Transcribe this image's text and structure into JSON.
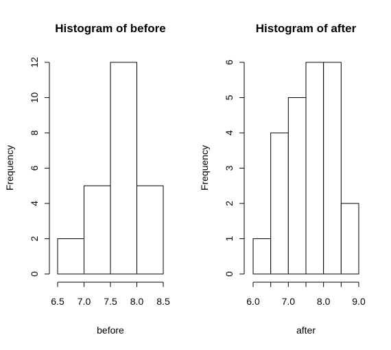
{
  "chart_data": [
    {
      "type": "bar",
      "title": "Histogram of before",
      "xlabel": "before",
      "ylabel": "Frequency",
      "bins": [
        [
          6.5,
          7.0
        ],
        [
          7.0,
          7.5
        ],
        [
          7.5,
          8.0
        ],
        [
          8.0,
          8.5
        ]
      ],
      "values": [
        2,
        5,
        12,
        5
      ],
      "xlim": [
        6.5,
        8.5
      ],
      "ylim": [
        0,
        12
      ],
      "xticks": [
        6.5,
        7.0,
        7.5,
        8.0,
        8.5
      ],
      "xtick_labels": [
        "6.5",
        "7.0",
        "7.5",
        "8.0",
        "8.5"
      ],
      "yticks": [
        0,
        2,
        4,
        6,
        8,
        10,
        12
      ],
      "ytick_labels": [
        "0",
        "2",
        "4",
        "6",
        "8",
        "10",
        "12"
      ],
      "grid": false
    },
    {
      "type": "bar",
      "title": "Histogram of after",
      "xlabel": "after",
      "ylabel": "Frequency",
      "bins": [
        [
          6.0,
          6.5
        ],
        [
          6.5,
          7.0
        ],
        [
          7.0,
          7.5
        ],
        [
          7.5,
          8.0
        ],
        [
          8.0,
          8.5
        ],
        [
          8.5,
          9.0
        ]
      ],
      "values": [
        1,
        4,
        5,
        6,
        6,
        2
      ],
      "xlim": [
        6.0,
        9.0
      ],
      "ylim": [
        0,
        6
      ],
      "xticks": [
        6.0,
        6.5,
        7.0,
        7.5,
        8.0,
        8.5,
        9.0
      ],
      "xtick_labels": [
        "6.0",
        "",
        "7.0",
        "",
        "8.0",
        "",
        "9.0"
      ],
      "yticks": [
        0,
        1,
        2,
        3,
        4,
        5,
        6
      ],
      "ytick_labels": [
        "0",
        "1",
        "2",
        "3",
        "4",
        "5",
        "6"
      ],
      "grid": false
    }
  ]
}
